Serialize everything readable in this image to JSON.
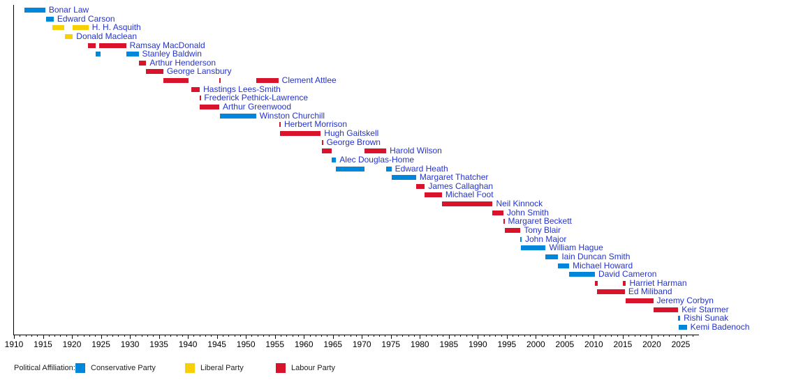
{
  "colors": {
    "conservative": "#0087DC",
    "liberal": "#F7D008",
    "labour": "#D9132C",
    "name_link": "#2433CC",
    "axis": "#000000",
    "legend_text": "#202020"
  },
  "legend": {
    "title": "Political Affiliation:",
    "items": [
      {
        "label": "Conservative Party",
        "party": "conservative"
      },
      {
        "label": "Liberal Party",
        "party": "liberal"
      },
      {
        "label": "Labour Party",
        "party": "labour"
      }
    ]
  },
  "chart_data": {
    "type": "timeline",
    "legend_position": "bottom",
    "x_axis": {
      "start": 1910,
      "end": 2028,
      "minor_tick_years": 1,
      "major_tick_years": 5,
      "labels": [
        "1910",
        "1915",
        "1920",
        "1925",
        "1930",
        "1935",
        "1940",
        "1945",
        "1950",
        "1955",
        "1960",
        "1965",
        "1970",
        "1975",
        "1980",
        "1985",
        "1990",
        "1995",
        "2000",
        "2005",
        "2010",
        "2015",
        "2020",
        "2025"
      ]
    },
    "people": [
      {
        "name": "Bonar Law",
        "party": "conservative",
        "terms": [
          [
            1911.85,
            1915.4
          ]
        ]
      },
      {
        "name": "Edward Carson",
        "party": "conservative",
        "terms": [
          [
            1915.5,
            1916.85
          ]
        ]
      },
      {
        "name": "H. H. Asquith",
        "party": "liberal",
        "terms": [
          [
            1916.6,
            1918.7
          ],
          [
            1920.1,
            1922.85
          ]
        ]
      },
      {
        "name": "Donald Maclean",
        "party": "liberal",
        "terms": [
          [
            1918.85,
            1920.15
          ]
        ]
      },
      {
        "name": "Ramsay MacDonald",
        "party": "labour",
        "terms": [
          [
            1922.8,
            1924.05
          ],
          [
            1924.65,
            1929.35
          ]
        ]
      },
      {
        "name": "Stanley Baldwin",
        "party": "conservative",
        "terms": [
          [
            1924.05,
            1924.9
          ],
          [
            1929.35,
            1931.5
          ]
        ]
      },
      {
        "name": "Arthur Henderson",
        "party": "labour",
        "terms": [
          [
            1931.55,
            1932.8
          ]
        ]
      },
      {
        "name": "George Lansbury",
        "party": "labour",
        "terms": [
          [
            1932.8,
            1935.75
          ]
        ]
      },
      {
        "name": "Clement Attlee",
        "party": "labour",
        "terms": [
          [
            1935.8,
            1940.1
          ],
          [
            1945.35,
            1945.6
          ],
          [
            1951.75,
            1955.6
          ]
        ]
      },
      {
        "name": "Hastings Lees-Smith",
        "party": "labour",
        "terms": [
          [
            1940.6,
            1942.05
          ]
        ]
      },
      {
        "name": "Frederick Pethick-Lawrence",
        "party": "labour",
        "terms": [
          [
            1942.0,
            1942.2
          ]
        ]
      },
      {
        "name": "Arthur Greenwood",
        "party": "labour",
        "terms": [
          [
            1942.05,
            1945.4
          ]
        ]
      },
      {
        "name": "Winston Churchill",
        "party": "conservative",
        "terms": [
          [
            1945.55,
            1951.75
          ]
        ]
      },
      {
        "name": "Herbert Morrison",
        "party": "labour",
        "terms": [
          [
            1955.75,
            1956.0
          ]
        ]
      },
      {
        "name": "Hugh Gaitskell",
        "party": "labour",
        "terms": [
          [
            1955.9,
            1962.9
          ]
        ]
      },
      {
        "name": "George Brown",
        "party": "labour",
        "terms": [
          [
            1963.05,
            1963.3
          ]
        ]
      },
      {
        "name": "Harold Wilson",
        "party": "labour",
        "terms": [
          [
            1963.1,
            1964.8
          ],
          [
            1970.45,
            1974.2
          ]
        ]
      },
      {
        "name": "Alec Douglas-Home",
        "party": "conservative",
        "terms": [
          [
            1964.8,
            1965.55
          ]
        ]
      },
      {
        "name": "Edward Heath",
        "party": "conservative",
        "terms": [
          [
            1965.55,
            1970.45
          ],
          [
            1974.2,
            1975.1
          ]
        ]
      },
      {
        "name": "Margaret Thatcher",
        "party": "conservative",
        "terms": [
          [
            1975.1,
            1979.35
          ]
        ]
      },
      {
        "name": "James Callaghan",
        "party": "labour",
        "terms": [
          [
            1979.35,
            1980.85
          ]
        ]
      },
      {
        "name": "Michael Foot",
        "party": "labour",
        "terms": [
          [
            1980.85,
            1983.8
          ]
        ]
      },
      {
        "name": "Neil Kinnock",
        "party": "labour",
        "terms": [
          [
            1983.8,
            1992.55
          ]
        ]
      },
      {
        "name": "John Smith",
        "party": "labour",
        "terms": [
          [
            1992.55,
            1994.4
          ]
        ]
      },
      {
        "name": "Margaret Beckett",
        "party": "labour",
        "terms": [
          [
            1994.4,
            1994.6
          ]
        ]
      },
      {
        "name": "Tony Blair",
        "party": "labour",
        "terms": [
          [
            1994.6,
            1997.35
          ]
        ]
      },
      {
        "name": "John Major",
        "party": "conservative",
        "terms": [
          [
            1997.35,
            1997.55
          ]
        ]
      },
      {
        "name": "William Hague",
        "party": "conservative",
        "terms": [
          [
            1997.45,
            2001.7
          ]
        ]
      },
      {
        "name": "Iain Duncan Smith",
        "party": "conservative",
        "terms": [
          [
            2001.7,
            2003.85
          ]
        ]
      },
      {
        "name": "Michael Howard",
        "party": "conservative",
        "terms": [
          [
            2003.85,
            2005.75
          ]
        ]
      },
      {
        "name": "David Cameron",
        "party": "conservative",
        "terms": [
          [
            2005.75,
            2010.2
          ]
        ]
      },
      {
        "name": "Harriet Harman",
        "party": "labour",
        "terms": [
          [
            2010.2,
            2010.65
          ],
          [
            2015.05,
            2015.55
          ]
        ]
      },
      {
        "name": "Ed Miliband",
        "party": "labour",
        "terms": [
          [
            2010.6,
            2015.35
          ]
        ]
      },
      {
        "name": "Jeremy Corbyn",
        "party": "labour",
        "terms": [
          [
            2015.55,
            2020.25
          ]
        ]
      },
      {
        "name": "Keir Starmer",
        "party": "labour",
        "terms": [
          [
            2020.25,
            2024.55
          ]
        ]
      },
      {
        "name": "Rishi Sunak",
        "party": "conservative",
        "terms": [
          [
            2024.55,
            2024.9
          ]
        ]
      },
      {
        "name": "Kemi Badenoch",
        "party": "conservative",
        "terms": [
          [
            2024.7,
            2026.05
          ]
        ]
      }
    ]
  }
}
